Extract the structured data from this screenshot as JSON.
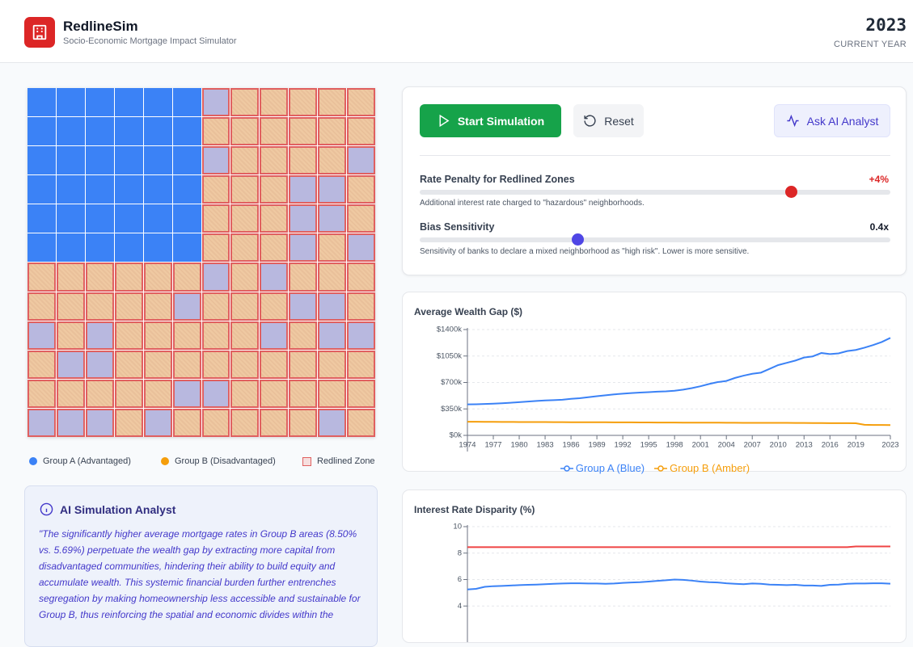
{
  "header": {
    "title": "RedlineSim",
    "subtitle": "Socio-Economic Mortgage Impact Simulator",
    "year": "2023",
    "year_label": "CURRENT YEAR"
  },
  "map": {
    "legend": [
      "Group A (Advantaged)",
      "Group B (Disadvantaged)",
      "Redlined Zone"
    ]
  },
  "analyst": {
    "title": "AI Simulation Analyst",
    "text": "\"The significantly higher average mortgage rates in Group B areas (8.50% vs. 5.69%) perpetuate the wealth gap by extracting more capital from disadvantaged communities, hindering their ability to build equity and accumulate wealth. This systemic financial burden further entrenches segregation by making homeownership less accessible and sustainable for Group B, thus reinforcing the spatial and economic divides within the"
  },
  "controls": {
    "buttons": [
      "Start Simulation",
      "Reset",
      "Ask AI Analyst"
    ],
    "sliders": [
      {
        "label": "Rate Penalty for Redlined Zones",
        "value": "+4%",
        "description": "Additional interest rate charged to \"hazardous\" neighborhoods."
      },
      {
        "label": "Bias Sensitivity",
        "value": "0.4x",
        "description": "Sensitivity of banks to declare a mixed neighborhood as \"high risk\". Lower is more sensitive."
      }
    ]
  },
  "chart_data": [
    {
      "type": "line",
      "title": "Average Wealth Gap ($)",
      "x": [
        1974,
        1975,
        1976,
        1977,
        1978,
        1979,
        1980,
        1981,
        1982,
        1983,
        1984,
        1985,
        1986,
        1987,
        1988,
        1989,
        1990,
        1991,
        1992,
        1993,
        1994,
        1995,
        1996,
        1997,
        1998,
        1999,
        2000,
        2001,
        2002,
        2003,
        2004,
        2005,
        2006,
        2007,
        2008,
        2009,
        2010,
        2011,
        2012,
        2013,
        2014,
        2015,
        2016,
        2017,
        2018,
        2019,
        2020,
        2021,
        2022,
        2023
      ],
      "xlim": [
        1974,
        2023
      ],
      "xticks": [
        1974,
        1977,
        1980,
        1983,
        1986,
        1989,
        1992,
        1995,
        1998,
        2001,
        2004,
        2007,
        2010,
        2013,
        2016,
        2019,
        2023
      ],
      "ylim": [
        0,
        1400000
      ],
      "yticks": [
        {
          "value": 0,
          "label": "$0k"
        },
        {
          "value": 350000,
          "label": "$350k"
        },
        {
          "value": 700000,
          "label": "$700k"
        },
        {
          "value": 1050000,
          "label": "$1050k"
        },
        {
          "value": 1400000,
          "label": "$1400k"
        }
      ],
      "grid": true,
      "legend": "bottom",
      "series": [
        {
          "name": "Group A (Blue)",
          "color": "#3b82f6",
          "values": [
            410000,
            412000,
            415000,
            420000,
            425000,
            432000,
            440000,
            447000,
            455000,
            462000,
            466000,
            472000,
            484000,
            492000,
            505000,
            518000,
            530000,
            542000,
            552000,
            560000,
            566000,
            572000,
            578000,
            582000,
            590000,
            605000,
            625000,
            650000,
            680000,
            705000,
            720000,
            760000,
            790000,
            815000,
            830000,
            880000,
            930000,
            960000,
            990000,
            1030000,
            1045000,
            1090000,
            1075000,
            1085000,
            1115000,
            1130000,
            1160000,
            1195000,
            1235000,
            1290000
          ]
        },
        {
          "name": "Group B (Amber)",
          "color": "#f59e0b",
          "values": [
            180000,
            180000,
            179000,
            179000,
            178000,
            178000,
            177000,
            177000,
            176000,
            176000,
            175000,
            175000,
            174000,
            174000,
            174000,
            173000,
            173000,
            172000,
            172000,
            172000,
            171000,
            171000,
            170000,
            170000,
            170000,
            169000,
            169000,
            168000,
            168000,
            168000,
            167000,
            167000,
            166000,
            166000,
            166000,
            165000,
            165000,
            165000,
            164000,
            164000,
            163000,
            163000,
            162000,
            162000,
            162000,
            160000,
            140000,
            138000,
            137000,
            136000
          ]
        }
      ]
    },
    {
      "type": "line",
      "title": "Interest Rate Disparity (%)",
      "x": [
        1974,
        1975,
        1976,
        1977,
        1978,
        1979,
        1980,
        1981,
        1982,
        1983,
        1984,
        1985,
        1986,
        1987,
        1988,
        1989,
        1990,
        1991,
        1992,
        1993,
        1994,
        1995,
        1996,
        1997,
        1998,
        1999,
        2000,
        2001,
        2002,
        2003,
        2004,
        2005,
        2006,
        2007,
        2008,
        2009,
        2010,
        2011,
        2012,
        2013,
        2014,
        2015,
        2016,
        2017,
        2018,
        2019,
        2020,
        2021,
        2022,
        2023
      ],
      "xlim": [
        1974,
        2023
      ],
      "ylim": [
        2,
        10
      ],
      "yticks": [
        4,
        6,
        8,
        10
      ],
      "grid": true,
      "series": [
        {
          "color": "#ef4444",
          "values": [
            8.45,
            8.45,
            8.45,
            8.45,
            8.45,
            8.45,
            8.45,
            8.45,
            8.45,
            8.45,
            8.45,
            8.45,
            8.45,
            8.45,
            8.45,
            8.45,
            8.45,
            8.45,
            8.45,
            8.45,
            8.45,
            8.45,
            8.45,
            8.45,
            8.45,
            8.45,
            8.45,
            8.45,
            8.45,
            8.45,
            8.45,
            8.45,
            8.45,
            8.45,
            8.45,
            8.45,
            8.45,
            8.45,
            8.45,
            8.45,
            8.45,
            8.45,
            8.45,
            8.45,
            8.45,
            8.5,
            8.5,
            8.5,
            8.5,
            8.5
          ]
        },
        {
          "color": "#3b82f6",
          "values": [
            5.25,
            5.3,
            5.45,
            5.5,
            5.52,
            5.55,
            5.58,
            5.6,
            5.62,
            5.65,
            5.68,
            5.7,
            5.72,
            5.72,
            5.7,
            5.7,
            5.68,
            5.7,
            5.75,
            5.78,
            5.8,
            5.85,
            5.9,
            5.95,
            6.0,
            5.98,
            5.92,
            5.85,
            5.8,
            5.78,
            5.72,
            5.68,
            5.65,
            5.7,
            5.68,
            5.62,
            5.6,
            5.58,
            5.6,
            5.55,
            5.55,
            5.52,
            5.6,
            5.62,
            5.68,
            5.7,
            5.7,
            5.72,
            5.72,
            5.69
          ]
        }
      ]
    }
  ]
}
